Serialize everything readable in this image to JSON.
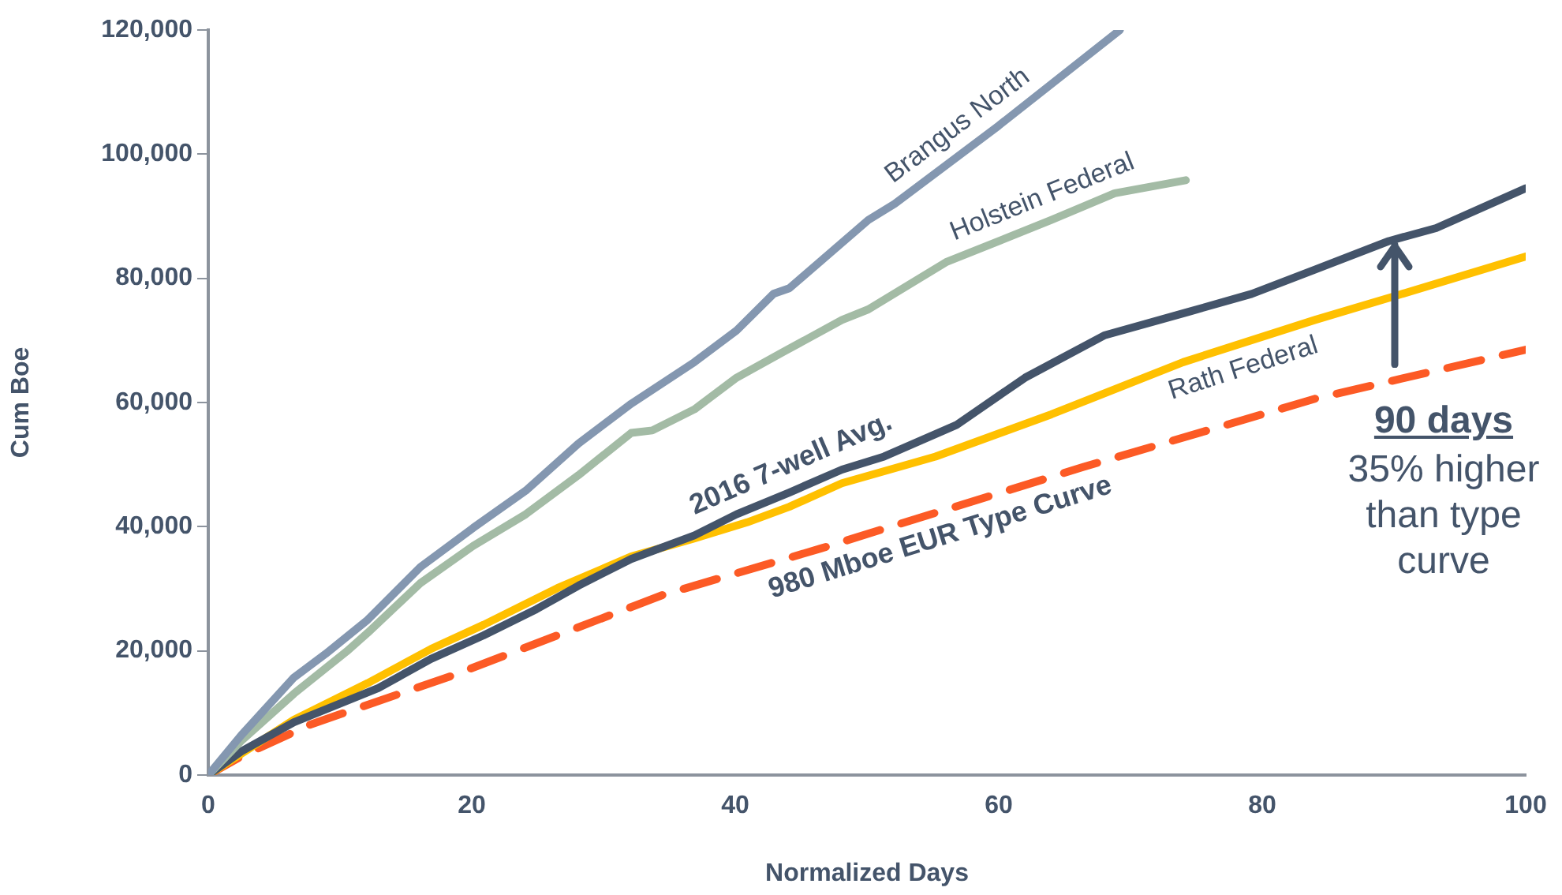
{
  "chart_data": {
    "type": "line",
    "xlabel": "Normalized Days",
    "ylabel": "Cum Boe",
    "xlim": [
      0,
      100
    ],
    "xticks": [
      0,
      20,
      40,
      60,
      80,
      100
    ],
    "ylim": [
      0,
      120000
    ],
    "yticks": [
      {
        "value": 0,
        "label": "0"
      },
      {
        "value": 20000,
        "label": "20,000"
      },
      {
        "value": 40000,
        "label": "40,000"
      },
      {
        "value": 60000,
        "label": "60,000"
      },
      {
        "value": 80000,
        "label": "80,000"
      },
      {
        "value": 100000,
        "label": "100,000"
      },
      {
        "value": 120000,
        "label": "120,000"
      }
    ],
    "annotations": [
      {
        "text": "90 days",
        "x": 90,
        "y": 86000
      },
      "35% higher than type curve"
    ],
    "series": [
      {
        "name": "Brangus North",
        "color": "#8497b0",
        "x": [
          0,
          2.5,
          6.5,
          8.9,
          12.1,
          16.1,
          20.1,
          24.1,
          28.1,
          32.1,
          36.9,
          40.1,
          42.9,
          44.1,
          50.1,
          52.1,
          60,
          69.2
        ],
        "values": [
          0,
          6400,
          15700,
          19500,
          25000,
          33500,
          39800,
          45800,
          53400,
          59800,
          66500,
          71600,
          77500,
          78400,
          89400,
          92000,
          104600,
          120000
        ]
      },
      {
        "name": "Holstein Federal",
        "color": "#a3bba5",
        "x": [
          0,
          2.5,
          6.5,
          10.5,
          12.1,
          16.1,
          20.1,
          24.1,
          28.1,
          32.1,
          33.7,
          36.9,
          40.1,
          43.7,
          48.1,
          50.1,
          56,
          64,
          68.8,
          74.2
        ],
        "values": [
          0,
          5500,
          13100,
          19900,
          22900,
          30900,
          36900,
          42000,
          48300,
          55100,
          55500,
          58900,
          64000,
          68200,
          73300,
          75000,
          82600,
          89400,
          93700,
          95800
        ]
      },
      {
        "name": "2016 7-well Avg.",
        "color": "#44546a",
        "x": [
          0,
          2.5,
          6.5,
          12.9,
          16.9,
          20.9,
          24.9,
          28.1,
          32.1,
          36.9,
          40.1,
          44.1,
          48.1,
          51.3,
          56.8,
          62,
          68,
          74.4,
          79.2,
          84,
          89.6,
          93.2,
          100
        ],
        "values": [
          0,
          3800,
          8500,
          14000,
          18700,
          22500,
          26700,
          30500,
          34800,
          38600,
          42000,
          45500,
          49200,
          51300,
          56400,
          64000,
          70800,
          74600,
          77500,
          81400,
          86000,
          88100,
          94500
        ]
      },
      {
        "name": "Rath Federal",
        "color": "#ffc000",
        "x": [
          0,
          6.5,
          12.1,
          16.9,
          20.9,
          26.5,
          32.1,
          36.9,
          40.9,
          44.1,
          48.1,
          55.2,
          64,
          74,
          84,
          90,
          100
        ],
        "values": [
          0,
          8900,
          14800,
          20300,
          24200,
          30100,
          35200,
          38100,
          40700,
          43200,
          47000,
          51300,
          58100,
          66500,
          73300,
          77100,
          83500
        ]
      },
      {
        "name": "980 Mboe EUR Type Curve",
        "color": "#fc5a25",
        "line_style": "dashed",
        "x": [
          0,
          2.5,
          7.7,
          18.5,
          34.5,
          46.5,
          66.4,
          84,
          100
        ],
        "values": [
          0,
          3000,
          8100,
          16000,
          29000,
          36500,
          49600,
          60600,
          68500
        ]
      }
    ]
  }
}
